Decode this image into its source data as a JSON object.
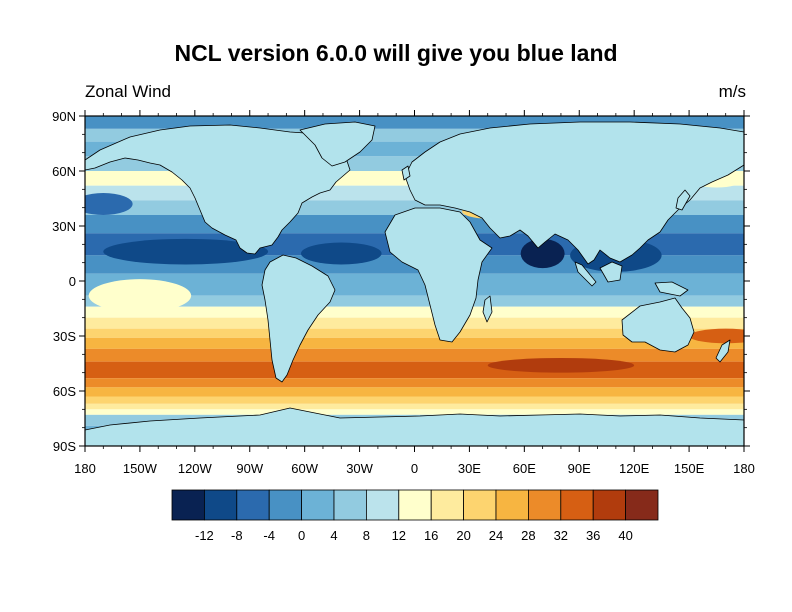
{
  "title": "NCL version 6.0.0 will give you blue land",
  "left_string": "Zonal Wind",
  "right_string": "m/s",
  "map": {
    "projection": "cylindrical-equidistant",
    "land_fill_color": "#b2e3ec",
    "lat_ticks": [
      "90N",
      "60N",
      "30N",
      "0",
      "30S",
      "60S",
      "90S"
    ],
    "lon_ticks": [
      "180",
      "150W",
      "120W",
      "90W",
      "60W",
      "30W",
      "0",
      "30E",
      "60E",
      "90E",
      "120E",
      "150E",
      "180"
    ],
    "lat_values": [
      90,
      60,
      30,
      0,
      -30,
      -60,
      -90
    ],
    "lon_values": [
      -180,
      -150,
      -120,
      -90,
      -60,
      -30,
      0,
      30,
      60,
      90,
      120,
      150,
      180
    ]
  },
  "colorbar": {
    "colors": [
      "#092252",
      "#0f4988",
      "#2b6aae",
      "#4891c4",
      "#6cb2d6",
      "#92cbe0",
      "#bbe3ec",
      "#ffffcc",
      "#feeb9e",
      "#fdd46f",
      "#f7b541",
      "#ec8b29",
      "#d65f13",
      "#b13c0d",
      "#862a1a"
    ],
    "labels": [
      "-12",
      "-8",
      "-4",
      "0",
      "4",
      "8",
      "12",
      "16",
      "20",
      "24",
      "28",
      "32",
      "36",
      "40"
    ]
  },
  "zonal_wind_bands": [
    {
      "lat_top": 90,
      "lat_bottom": 83,
      "level": 3
    },
    {
      "lat_top": 83,
      "lat_bottom": 76,
      "level": 5
    },
    {
      "lat_top": 76,
      "lat_bottom": 68,
      "level": 4
    },
    {
      "lat_top": 68,
      "lat_bottom": 60,
      "level": 5
    },
    {
      "lat_top": 60,
      "lat_bottom": 52,
      "level": 7
    },
    {
      "lat_top": 52,
      "lat_bottom": 44,
      "level": 6
    },
    {
      "lat_top": 44,
      "lat_bottom": 36,
      "level": 5
    },
    {
      "lat_top": 36,
      "lat_bottom": 26,
      "level": 3
    },
    {
      "lat_top": 26,
      "lat_bottom": 14,
      "level": 2
    },
    {
      "lat_top": 14,
      "lat_bottom": 4,
      "level": 3
    },
    {
      "lat_top": 4,
      "lat_bottom": -8,
      "level": 4
    },
    {
      "lat_top": -8,
      "lat_bottom": -14,
      "level": 5
    },
    {
      "lat_top": -14,
      "lat_bottom": -20,
      "level": 7
    },
    {
      "lat_top": -20,
      "lat_bottom": -26,
      "level": 8
    },
    {
      "lat_top": -26,
      "lat_bottom": -31,
      "level": 9
    },
    {
      "lat_top": -31,
      "lat_bottom": -37,
      "level": 10
    },
    {
      "lat_top": -37,
      "lat_bottom": -44,
      "level": 11
    },
    {
      "lat_top": -44,
      "lat_bottom": -53,
      "level": 12
    },
    {
      "lat_top": -53,
      "lat_bottom": -58,
      "level": 11
    },
    {
      "lat_top": -58,
      "lat_bottom": -63,
      "level": 10
    },
    {
      "lat_top": -63,
      "lat_bottom": -67,
      "level": 9
    },
    {
      "lat_top": -67,
      "lat_bottom": -70,
      "level": 8
    },
    {
      "lat_top": -70,
      "lat_bottom": -73,
      "level": 7
    },
    {
      "lat_top": -73,
      "lat_bottom": -79,
      "level": 5
    },
    {
      "lat_top": -79,
      "lat_bottom": -84,
      "level": 4
    },
    {
      "lat_top": -84,
      "lat_bottom": -90,
      "level": 3
    }
  ],
  "wind_features": [
    {
      "lon": -125,
      "lat": 16,
      "rx": 45,
      "ry": 7,
      "level": 1
    },
    {
      "lon": -40,
      "lat": 15,
      "rx": 22,
      "ry": 6,
      "level": 1
    },
    {
      "lon": -150,
      "lat": -8,
      "rx": 28,
      "ry": 9,
      "level": 7
    },
    {
      "lon": 110,
      "lat": 14,
      "rx": 25,
      "ry": 9,
      "level": 1
    },
    {
      "lon": 70,
      "lat": 15,
      "rx": 12,
      "ry": 8,
      "level": 0
    },
    {
      "lon": 80,
      "lat": -46,
      "rx": 40,
      "ry": 4,
      "level": 13
    },
    {
      "lon": 170,
      "lat": -30,
      "rx": 20,
      "ry": 4,
      "level": 12
    },
    {
      "lon": -170,
      "lat": 42,
      "rx": 16,
      "ry": 6,
      "level": 2
    },
    {
      "lon": 40,
      "lat": 38,
      "rx": 14,
      "ry": 4,
      "level": 9
    },
    {
      "lon": 165,
      "lat": 55,
      "rx": 14,
      "ry": 4,
      "level": 7
    }
  ]
}
